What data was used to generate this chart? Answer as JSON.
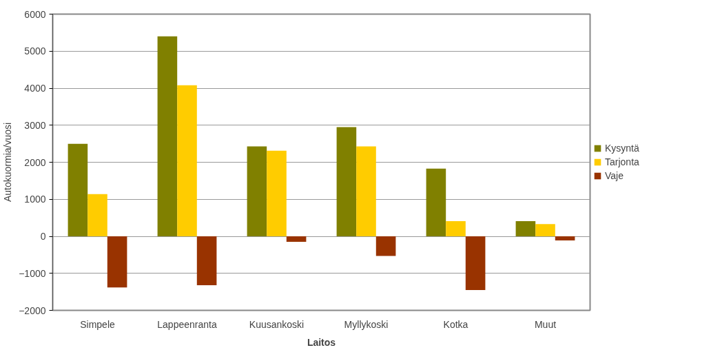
{
  "chart_data": {
    "type": "bar",
    "xlabel": "Laitos",
    "ylabel": "Autokuormia/vuosi",
    "categories": [
      "Simpele",
      "Lappeenranta",
      "Kuusankoski",
      "Myllykoski",
      "Kotka",
      "Muut"
    ],
    "series": [
      {
        "name": "Kysyntä",
        "color": "#808000",
        "values": [
          2500,
          5400,
          2430,
          2950,
          1830,
          410
        ]
      },
      {
        "name": "Tarjonta",
        "color": "#ffcc00",
        "values": [
          1140,
          4080,
          2310,
          2430,
          410,
          330
        ]
      },
      {
        "name": "Vaje",
        "color": "#993300",
        "values": [
          -1380,
          -1320,
          -150,
          -530,
          -1450,
          -110
        ]
      }
    ],
    "ylim": [
      -2000,
      6000
    ],
    "yticks": [
      -2000,
      -1000,
      0,
      1000,
      2000,
      3000,
      4000,
      5000,
      6000
    ],
    "grid": "y",
    "legend": "right"
  }
}
